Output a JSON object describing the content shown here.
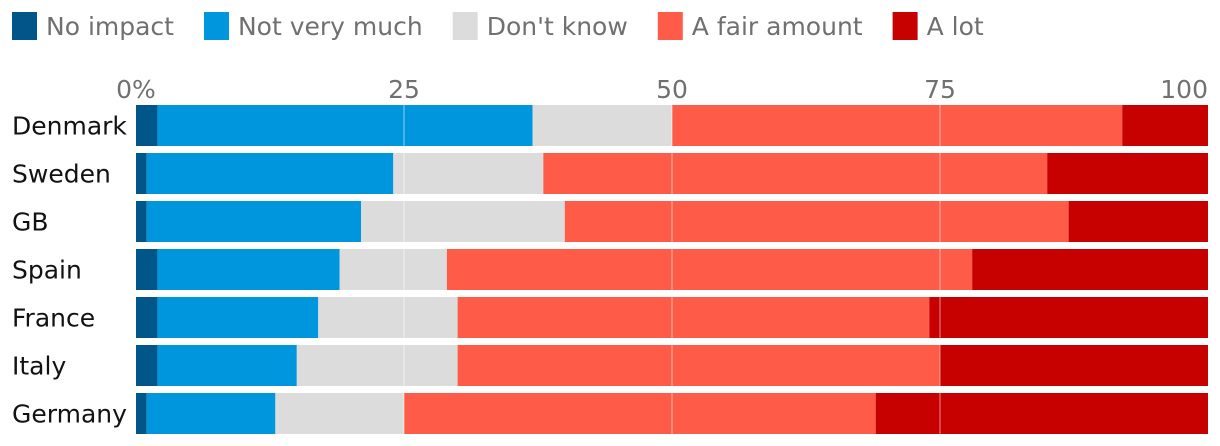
{
  "chart_data": {
    "type": "bar",
    "orientation": "horizontal",
    "stacked": true,
    "categories": [
      "Denmark",
      "Sweden",
      "GB",
      "Spain",
      "France",
      "Italy",
      "Germany"
    ],
    "series": [
      {
        "name": "No impact",
        "color": "#005689",
        "values": [
          2,
          1,
          1,
          2,
          2,
          2,
          1
        ]
      },
      {
        "name": "Not very much",
        "color": "#0096de",
        "values": [
          35,
          23,
          20,
          17,
          15,
          13,
          12
        ]
      },
      {
        "name": "Don't know",
        "color": "#dcdcdc",
        "values": [
          13,
          14,
          19,
          10,
          13,
          15,
          12
        ]
      },
      {
        "name": "A fair amount",
        "color": "#ff5b49",
        "values": [
          42,
          47,
          47,
          49,
          44,
          45,
          44
        ]
      },
      {
        "name": "A lot",
        "color": "#c70000",
        "values": [
          8,
          15,
          13,
          22,
          26,
          25,
          31
        ]
      }
    ],
    "x_ticks": [
      "0%",
      "25",
      "50",
      "75",
      "100"
    ],
    "x_tick_values": [
      0,
      25,
      50,
      75,
      100
    ],
    "xlim": [
      0,
      100
    ],
    "grid": true,
    "legend_position": "top-left"
  }
}
